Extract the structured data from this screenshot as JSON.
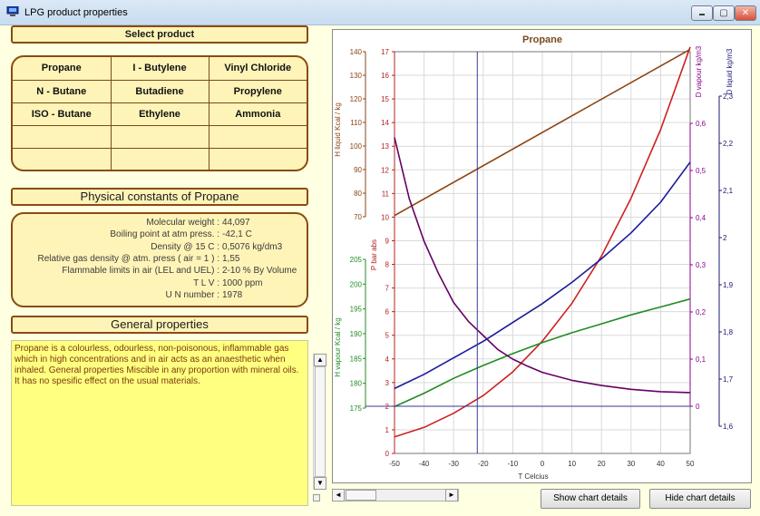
{
  "window": {
    "title": "LPG product properties",
    "controls": {
      "minimize": "▬",
      "maximize": "▢",
      "close": "✕"
    }
  },
  "select_product": {
    "heading": "Select product",
    "rows": [
      [
        "Propane",
        "I - Butylene",
        "Vinyl Chloride"
      ],
      [
        "N - Butane",
        "Butadiene",
        "Propylene"
      ],
      [
        "ISO - Butane",
        "Ethylene",
        "Ammonia"
      ],
      [
        "",
        "",
        ""
      ],
      [
        "",
        "",
        ""
      ]
    ]
  },
  "physical_constants": {
    "heading": "Physical constants of Propane",
    "rows": [
      {
        "label": "Molecular weight :",
        "value": "44,097"
      },
      {
        "label": "Boiling point at atm press. :",
        "value": "-42,1 C"
      },
      {
        "label": "Density @ 15 C :",
        "value": "0,5076 kg/dm3"
      },
      {
        "label": "Relative gas density @ atm. press ( air = 1 ) :",
        "value": "1,55"
      },
      {
        "label": "Flammable limits in air (LEL and UEL) :",
        "value": "2-10 % By Volume"
      },
      {
        "label": "T L V :",
        "value": "1000 ppm"
      },
      {
        "label": "U N number :",
        "value": "1978"
      }
    ]
  },
  "general_properties": {
    "heading": "General properties",
    "text": "Propane is a colourless, odourless, non-poisonous, inflammable gas which in high concentrations and in air acts as an anaesthetic when inhaled. General properties Miscible in any proportion with mineral oils. It has no spesific effect on the usual materials."
  },
  "buttons": {
    "show_chart_details": "Show chart details",
    "hide_chart_details": "Hide chart details"
  },
  "scroll_glyphs": {
    "up": "▲",
    "down": "▼",
    "left": "◄",
    "right": "►"
  },
  "chart_data": {
    "type": "line",
    "title": "Propane",
    "xlabel": "T  Celcius",
    "x_ticks": [
      -50,
      -40,
      -30,
      -20,
      -10,
      0,
      10,
      20,
      30,
      40,
      50
    ],
    "xlim": [
      -50,
      50
    ],
    "grid": true,
    "cursor_x": -22,
    "axes": {
      "p": {
        "label": "P  bar abs",
        "ticks": [
          0,
          1,
          2,
          3,
          4,
          5,
          6,
          7,
          8,
          9,
          10,
          11,
          12,
          13,
          14,
          15,
          16,
          17
        ],
        "range": [
          0,
          17
        ],
        "color": "#b22222"
      },
      "h_liquid": {
        "label": "H liquid Kcal / kg",
        "ticks": [
          70,
          80,
          90,
          100,
          110,
          120,
          130,
          140
        ],
        "range": [
          70,
          140
        ],
        "color": "#8b4513"
      },
      "h_vapour": {
        "label": "H vapour Kcal / kg",
        "ticks": [
          175,
          180,
          185,
          190,
          195,
          200,
          205
        ],
        "range": [
          175,
          205
        ],
        "color": "#228b22"
      },
      "d_vapour": {
        "label": "D  vapour kg/m3",
        "ticks": [
          "0",
          "0,1",
          "0,2",
          "0,3",
          "0,4",
          "0,5",
          "0,6"
        ],
        "range": [
          0,
          0.6
        ],
        "color": "#8b008b"
      },
      "d_liquid": {
        "label": "D  liquid kg/m3",
        "ticks": [
          "1,6",
          "1,7",
          "1,8",
          "1,9",
          "2",
          "2,1",
          "2,2",
          "2,3"
        ],
        "range": [
          1.6,
          2.3
        ],
        "color": "#191970"
      }
    },
    "series": [
      {
        "axis": "p",
        "color": "#cc2222",
        "points": [
          [
            -50,
            0.7
          ],
          [
            -40,
            1.1
          ],
          [
            -30,
            1.7
          ],
          [
            -20,
            2.45
          ],
          [
            -10,
            3.45
          ],
          [
            0,
            4.75
          ],
          [
            10,
            6.35
          ],
          [
            20,
            8.35
          ],
          [
            30,
            10.8
          ],
          [
            40,
            13.7
          ],
          [
            50,
            17.2
          ]
        ]
      },
      {
        "axis": "h_liquid",
        "color": "#8b4513",
        "points": [
          [
            -50,
            70.5
          ],
          [
            50,
            141
          ]
        ]
      },
      {
        "axis": "h_vapour",
        "color": "#228b22",
        "points": [
          [
            -50,
            175.3
          ],
          [
            -40,
            178.0
          ],
          [
            -30,
            181.0
          ],
          [
            -20,
            183.6
          ],
          [
            -10,
            186.0
          ],
          [
            0,
            188.2
          ],
          [
            10,
            190.2
          ],
          [
            20,
            192.0
          ],
          [
            30,
            193.8
          ],
          [
            40,
            195.4
          ],
          [
            50,
            197.0
          ]
        ]
      },
      {
        "axis": "d_vapour",
        "color": "#660066",
        "points": [
          [
            -50,
            0.57
          ],
          [
            -45,
            0.44
          ],
          [
            -40,
            0.35
          ],
          [
            -35,
            0.28
          ],
          [
            -30,
            0.22
          ],
          [
            -25,
            0.18
          ],
          [
            -20,
            0.15
          ],
          [
            -15,
            0.12
          ],
          [
            -10,
            0.1
          ],
          [
            -5,
            0.085
          ],
          [
            0,
            0.072
          ],
          [
            10,
            0.055
          ],
          [
            20,
            0.044
          ],
          [
            30,
            0.036
          ],
          [
            40,
            0.031
          ],
          [
            50,
            0.029
          ]
        ]
      },
      {
        "axis": "d_liquid",
        "color": "#1a1a9a",
        "points": [
          [
            -50,
            1.68
          ],
          [
            -40,
            1.71
          ],
          [
            -30,
            1.745
          ],
          [
            -20,
            1.78
          ],
          [
            -10,
            1.82
          ],
          [
            0,
            1.86
          ],
          [
            10,
            1.905
          ],
          [
            20,
            1.955
          ],
          [
            30,
            2.01
          ],
          [
            40,
            2.075
          ],
          [
            50,
            2.16
          ]
        ]
      }
    ]
  }
}
